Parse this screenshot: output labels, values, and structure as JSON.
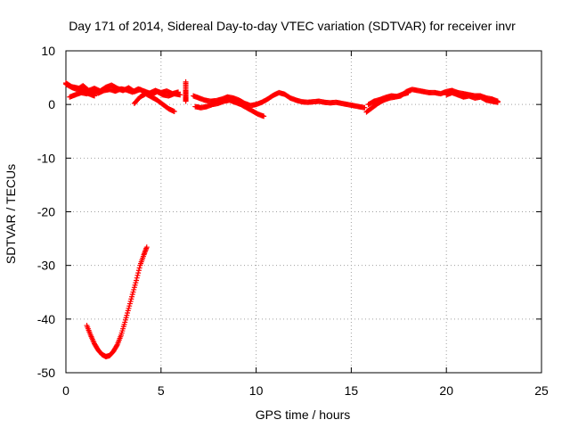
{
  "chart_data": {
    "type": "scatter",
    "title": "Day 171 of 2014, Sidereal Day-to-day VTEC variation (SDTVAR) for receiver invr",
    "xlabel": "GPS time / hours",
    "ylabel": "SDTVAR / TECUs",
    "xlim": [
      0,
      25
    ],
    "ylim": [
      -50,
      10
    ],
    "x_ticks": [
      0,
      5,
      10,
      15,
      20,
      25
    ],
    "y_ticks": [
      -50,
      -40,
      -30,
      -20,
      -10,
      0,
      10
    ],
    "grid": true,
    "marker": "+",
    "series": [
      {
        "name": "SDTVAR",
        "color": "#ff0000",
        "segments": [
          {
            "x": [
              0.0,
              0.3,
              0.6,
              0.9,
              1.2,
              1.5,
              1.8,
              2.1,
              2.4,
              2.7,
              3.0,
              3.3,
              3.6,
              3.9,
              4.2,
              4.5,
              4.8,
              5.1,
              5.4,
              5.7,
              6.0
            ],
            "y": [
              3.8,
              3.2,
              2.8,
              3.5,
              2.6,
              3.0,
              2.5,
              3.2,
              3.6,
              3.0,
              2.6,
              3.1,
              2.4,
              2.8,
              2.2,
              1.9,
              2.4,
              1.8,
              1.6,
              2.0,
              1.8
            ]
          },
          {
            "x": [
              0.2,
              0.5,
              0.8,
              1.1,
              1.4,
              1.7,
              2.0,
              2.3,
              2.6,
              2.9,
              3.2,
              3.5,
              3.8,
              4.1,
              4.4,
              4.7,
              5.0,
              5.3,
              5.6,
              5.9
            ],
            "y": [
              1.4,
              1.8,
              2.2,
              2.0,
              2.4,
              2.1,
              2.6,
              2.8,
              2.5,
              2.9,
              2.7,
              2.3,
              2.9,
              2.5,
              2.1,
              2.6,
              2.2,
              2.5,
              2.0,
              2.3
            ]
          },
          {
            "x": [
              0.0,
              0.3,
              0.6,
              0.9,
              1.2,
              1.5
            ],
            "y": [
              4.0,
              3.3,
              3.1,
              2.6,
              2.0,
              1.6
            ]
          },
          {
            "x": [
              3.6,
              3.9,
              4.2,
              4.5,
              4.8,
              5.1,
              5.4,
              5.7
            ],
            "y": [
              0.2,
              1.4,
              2.0,
              1.4,
              0.8,
              0.0,
              -0.8,
              -1.3
            ]
          },
          {
            "x": [
              6.3,
              6.3,
              6.3,
              6.3
            ],
            "y": [
              4.2,
              2.6,
              1.4,
              0.6
            ]
          },
          {
            "x": [
              6.7,
              7.0,
              7.3,
              7.6,
              7.9,
              8.2,
              8.5,
              8.8,
              9.1,
              9.4,
              9.7,
              10.0,
              10.3,
              10.6,
              10.9,
              11.2,
              11.5,
              11.8,
              12.1,
              12.4,
              12.7,
              13.0,
              13.3,
              13.6,
              13.9,
              14.2,
              14.5,
              14.8,
              15.1,
              15.4,
              15.7
            ],
            "y": [
              1.6,
              1.2,
              0.8,
              0.6,
              0.7,
              1.0,
              1.4,
              1.2,
              0.8,
              0.2,
              -0.2,
              0.0,
              0.4,
              1.0,
              1.7,
              2.2,
              1.9,
              1.2,
              0.8,
              0.5,
              0.4,
              0.5,
              0.6,
              0.4,
              0.3,
              0.4,
              0.2,
              0.0,
              -0.2,
              -0.4,
              -0.6
            ]
          },
          {
            "x": [
              6.8,
              7.1,
              7.4,
              7.7,
              8.0,
              8.3,
              8.6,
              8.9,
              9.2,
              9.5,
              9.8,
              10.1,
              10.4
            ],
            "y": [
              -0.4,
              -0.6,
              -0.4,
              0.0,
              0.2,
              0.6,
              0.8,
              0.4,
              0.0,
              -0.6,
              -1.2,
              -1.8,
              -2.2
            ]
          },
          {
            "x": [
              15.8,
              16.1,
              16.4,
              16.7,
              17.0,
              17.3,
              17.6,
              17.9,
              18.2,
              18.5,
              18.8,
              19.1,
              19.4,
              19.7,
              20.0,
              20.3,
              20.6,
              20.9,
              21.2,
              21.5,
              21.8,
              22.1,
              22.4,
              22.7
            ],
            "y": [
              -1.4,
              -0.6,
              0.2,
              0.8,
              1.2,
              1.4,
              1.6,
              2.4,
              2.8,
              2.6,
              2.4,
              2.2,
              2.2,
              2.0,
              2.4,
              2.6,
              2.2,
              2.0,
              1.8,
              1.6,
              1.6,
              1.2,
              1.0,
              0.6
            ]
          },
          {
            "x": [
              15.9,
              16.2,
              16.5,
              16.8,
              17.1,
              17.4,
              17.7,
              18.0
            ],
            "y": [
              0.0,
              0.6,
              0.9,
              1.3,
              1.6,
              1.5,
              1.9,
              2.2
            ]
          },
          {
            "x": [
              20.0,
              20.3,
              20.6,
              20.9,
              21.2,
              21.5,
              21.8,
              22.1,
              22.4,
              22.7
            ],
            "y": [
              1.8,
              2.2,
              1.8,
              1.4,
              1.6,
              1.2,
              1.4,
              0.8,
              0.6,
              0.4
            ]
          },
          {
            "x": [
              1.1,
              1.3,
              1.5,
              1.7,
              1.9,
              2.1,
              2.3,
              2.5,
              2.7,
              2.9,
              3.1,
              3.3,
              3.5,
              3.7,
              3.9,
              4.1,
              4.25
            ],
            "y": [
              -41.2,
              -43.0,
              -44.6,
              -45.8,
              -46.6,
              -47.0,
              -46.8,
              -46.0,
              -44.8,
              -43.0,
              -40.6,
              -38.0,
              -35.4,
              -32.8,
              -30.0,
              -28.0,
              -26.6
            ]
          }
        ]
      }
    ]
  }
}
